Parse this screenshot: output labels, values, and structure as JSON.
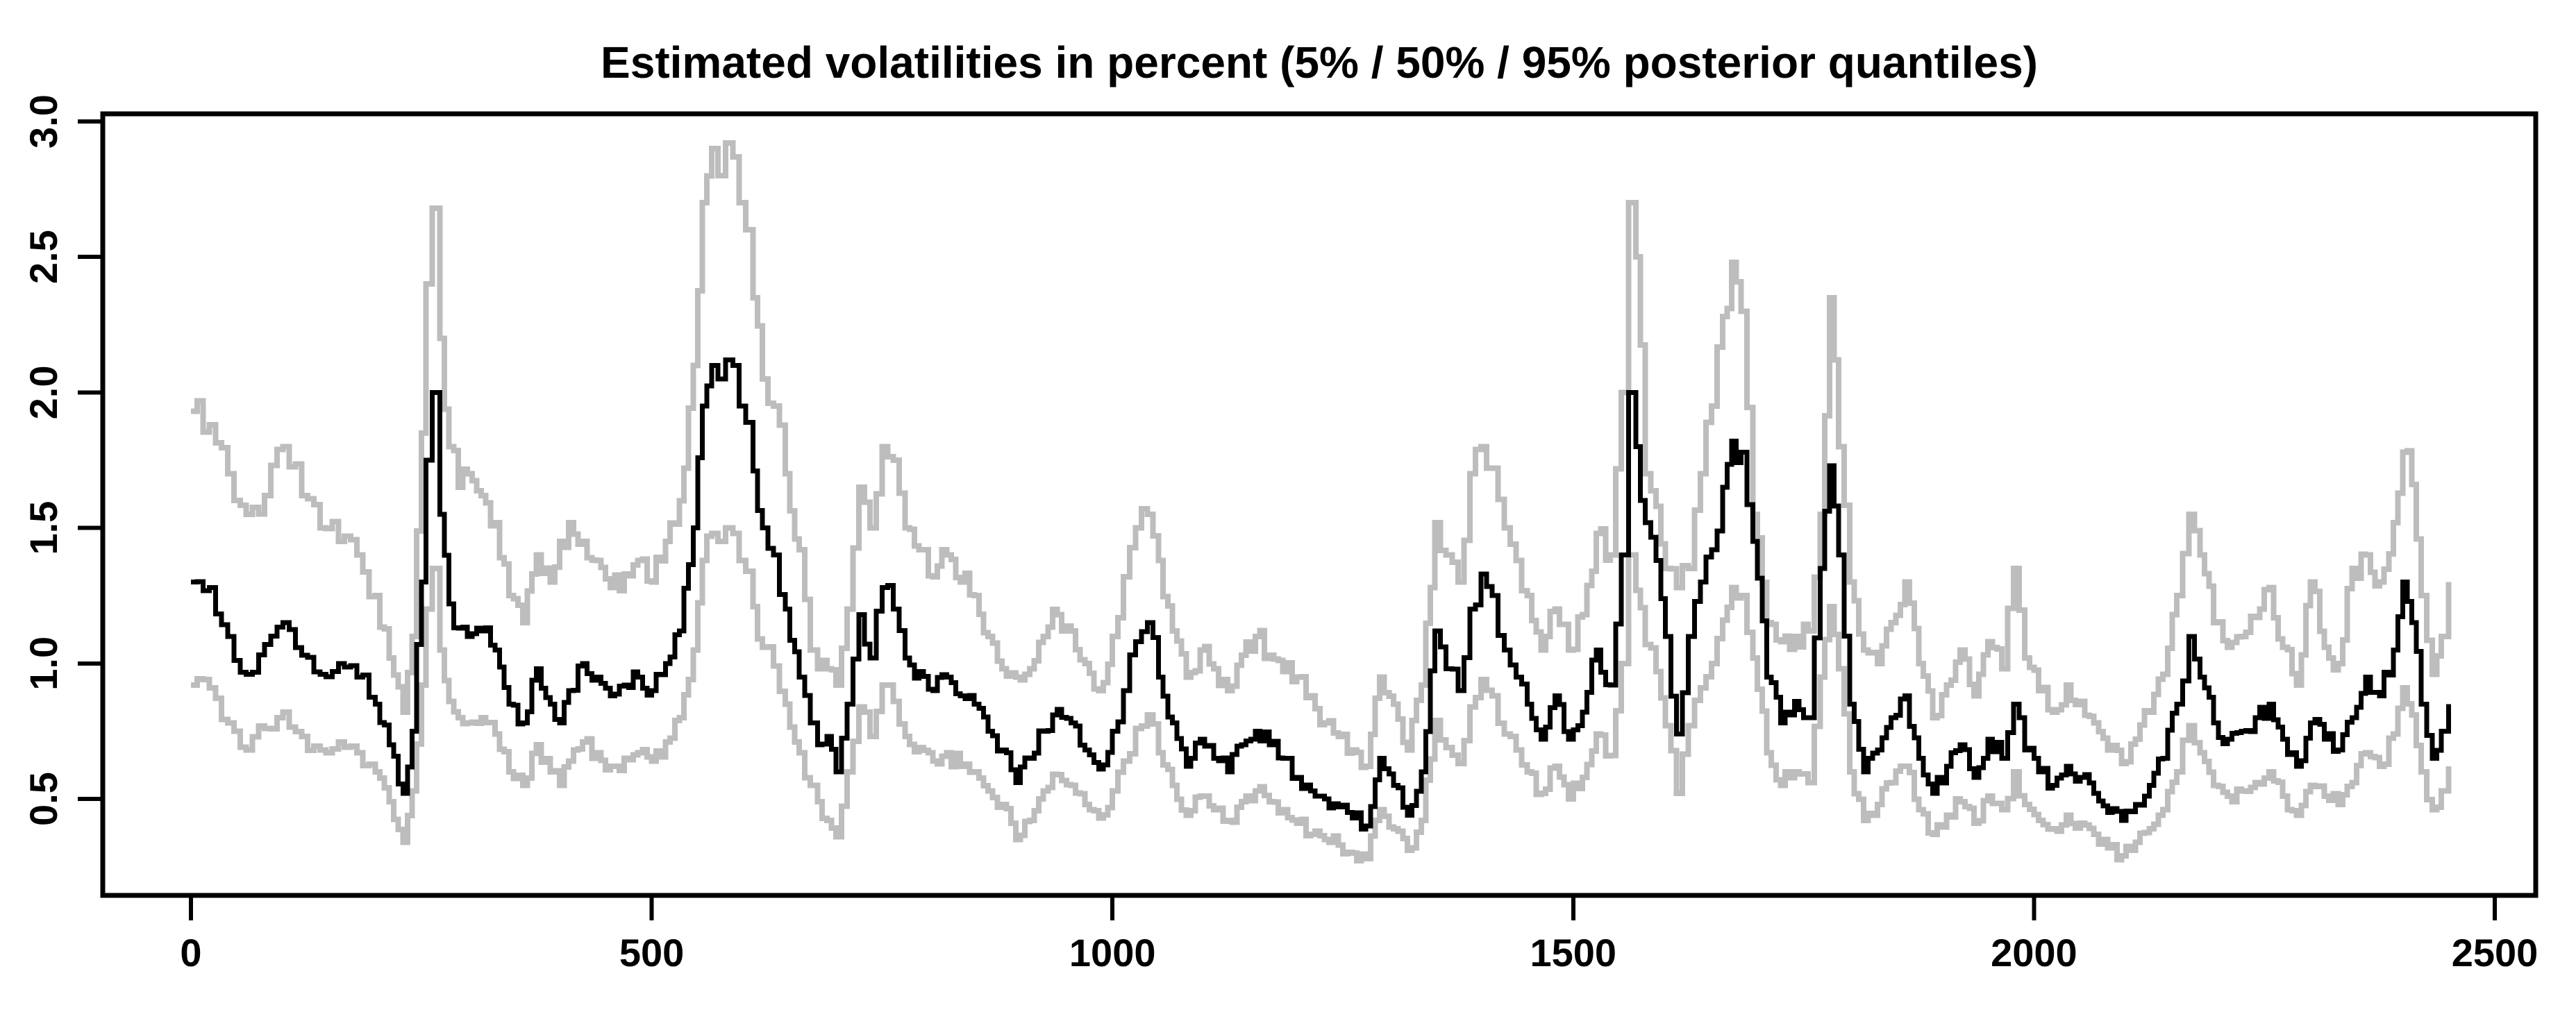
{
  "title": "Estimated volatilities in percent (5% / 50% / 95% posterior quantiles)",
  "colors": {
    "background": "#ffffff",
    "axis": "#000000",
    "median_line": "#000000",
    "quantile_line": "#bdbdbd"
  },
  "chart_data": {
    "type": "line",
    "title": "Estimated volatilities in percent (5% / 50% / 95% posterior quantiles)",
    "xlabel": "",
    "ylabel": "",
    "xlim": [
      -96,
      2544
    ],
    "ylim": [
      0.14,
      3.03
    ],
    "x_ticks": [
      0,
      500,
      1000,
      1500,
      2000,
      2500
    ],
    "x_tick_labels": [
      "0",
      "500",
      "1000",
      "1500",
      "2000",
      "2500"
    ],
    "y_ticks": [
      0.5,
      1.0,
      1.5,
      2.0,
      2.5,
      3.0
    ],
    "y_tick_labels": [
      "0.5",
      "1.0",
      "1.5",
      "2.0",
      "2.5",
      "3.0"
    ],
    "grid": false,
    "legend": "none",
    "x": [
      0,
      20,
      40,
      60,
      80,
      100,
      120,
      140,
      160,
      180,
      200,
      215,
      230,
      240,
      250,
      255,
      262,
      270,
      280,
      290,
      300,
      315,
      330,
      345,
      360,
      375,
      390,
      400,
      410,
      425,
      440,
      455,
      470,
      485,
      500,
      515,
      530,
      545,
      555,
      565,
      572,
      580,
      588,
      595,
      602,
      610,
      620,
      632,
      645,
      660,
      672,
      680,
      690,
      700,
      712,
      725,
      737,
      750,
      762,
      775,
      790,
      805,
      820,
      835,
      850,
      865,
      880,
      895,
      910,
      925,
      940,
      955,
      970,
      985,
      1000,
      1012,
      1025,
      1038,
      1050,
      1065,
      1080,
      1095,
      1110,
      1125,
      1140,
      1155,
      1170,
      1185,
      1200,
      1215,
      1230,
      1245,
      1260,
      1275,
      1290,
      1305,
      1320,
      1335,
      1350,
      1362,
      1375,
      1388,
      1400,
      1412,
      1425,
      1438,
      1450,
      1465,
      1480,
      1495,
      1510,
      1525,
      1540,
      1552,
      1560,
      1568,
      1578,
      1590,
      1600,
      1612,
      1625,
      1638,
      1650,
      1662,
      1672,
      1682,
      1695,
      1710,
      1725,
      1740,
      1755,
      1768,
      1778,
      1788,
      1800,
      1815,
      1830,
      1845,
      1860,
      1875,
      1890,
      1905,
      1920,
      1935,
      1950,
      1965,
      1978,
      1990,
      2005,
      2020,
      2035,
      2050,
      2065,
      2080,
      2095,
      2110,
      2125,
      2140,
      2155,
      2168,
      2180,
      2195,
      2210,
      2225,
      2240,
      2255,
      2270,
      2285,
      2300,
      2315,
      2330,
      2345,
      2360,
      2375,
      2390,
      2400,
      2410,
      2420,
      2432,
      2442,
      2450
    ],
    "series": [
      {
        "name": "95% posterior quantile",
        "color": "#bdbdbd",
        "values": [
          1.93,
          1.88,
          1.7,
          1.55,
          1.62,
          1.8,
          1.62,
          1.5,
          1.45,
          1.4,
          1.25,
          1.02,
          0.82,
          1.1,
          1.85,
          2.4,
          2.68,
          2.2,
          1.8,
          1.65,
          1.7,
          1.62,
          1.52,
          1.25,
          1.15,
          1.4,
          1.3,
          1.45,
          1.52,
          1.45,
          1.38,
          1.28,
          1.33,
          1.38,
          1.3,
          1.45,
          1.6,
          2.1,
          2.7,
          2.9,
          2.8,
          2.92,
          2.87,
          2.7,
          2.6,
          2.35,
          2.05,
          1.95,
          1.7,
          1.42,
          1.05,
          0.98,
          0.98,
          0.92,
          1.2,
          1.65,
          1.5,
          1.8,
          1.75,
          1.5,
          1.42,
          1.32,
          1.4,
          1.3,
          1.25,
          1.1,
          0.98,
          0.95,
          0.98,
          1.1,
          1.18,
          1.12,
          1.0,
          0.9,
          1.1,
          1.32,
          1.5,
          1.55,
          1.38,
          1.12,
          0.95,
          1.05,
          0.98,
          0.9,
          1.03,
          1.1,
          1.03,
          0.97,
          0.95,
          0.88,
          0.78,
          0.73,
          0.68,
          0.62,
          0.95,
          0.85,
          0.68,
          0.92,
          1.52,
          1.4,
          1.3,
          1.7,
          1.8,
          1.72,
          1.5,
          1.38,
          1.25,
          1.05,
          1.2,
          1.05,
          1.18,
          1.48,
          1.4,
          2.0,
          2.7,
          2.5,
          1.7,
          1.58,
          1.35,
          1.28,
          1.35,
          1.7,
          1.95,
          2.28,
          2.48,
          2.3,
          1.55,
          1.15,
          1.08,
          1.1,
          1.12,
          1.55,
          2.35,
          1.8,
          1.3,
          1.05,
          1.0,
          1.15,
          1.3,
          1.0,
          0.8,
          0.92,
          1.05,
          0.88,
          1.08,
          0.98,
          1.35,
          1.02,
          0.9,
          0.82,
          0.92,
          0.86,
          0.78,
          0.68,
          0.63,
          0.72,
          0.82,
          0.96,
          1.25,
          1.55,
          1.4,
          1.15,
          1.06,
          1.1,
          1.17,
          1.28,
          1.06,
          0.92,
          1.3,
          1.06,
          1.0,
          1.35,
          1.4,
          1.3,
          1.52,
          1.78,
          1.66,
          1.25,
          0.96,
          1.1,
          1.3
        ]
      },
      {
        "name": "50% posterior quantile (median)",
        "color": "#000000",
        "values": [
          1.3,
          1.28,
          1.1,
          0.96,
          1.07,
          1.15,
          1.03,
          0.96,
          1.0,
          0.95,
          0.85,
          0.7,
          0.52,
          0.75,
          1.3,
          1.75,
          2.0,
          1.55,
          1.22,
          1.13,
          1.1,
          1.12,
          1.05,
          0.85,
          0.78,
          0.98,
          0.85,
          0.78,
          0.9,
          1.0,
          0.95,
          0.88,
          0.92,
          0.95,
          0.9,
          1.0,
          1.12,
          1.5,
          1.95,
          2.1,
          2.05,
          2.12,
          2.1,
          1.95,
          1.89,
          1.71,
          1.5,
          1.4,
          1.2,
          0.95,
          0.78,
          0.7,
          0.73,
          0.6,
          0.85,
          1.18,
          1.02,
          1.28,
          1.2,
          1.02,
          0.97,
          0.9,
          0.95,
          0.88,
          0.85,
          0.75,
          0.68,
          0.56,
          0.65,
          0.75,
          0.83,
          0.78,
          0.68,
          0.61,
          0.75,
          0.9,
          1.08,
          1.15,
          0.95,
          0.78,
          0.62,
          0.72,
          0.65,
          0.6,
          0.7,
          0.75,
          0.7,
          0.65,
          0.58,
          0.53,
          0.5,
          0.47,
          0.43,
          0.4,
          0.65,
          0.55,
          0.44,
          0.6,
          1.12,
          0.98,
          0.9,
          1.2,
          1.33,
          1.25,
          1.05,
          0.95,
          0.85,
          0.72,
          0.88,
          0.72,
          0.82,
          1.05,
          0.92,
          1.4,
          2.0,
          1.8,
          1.52,
          1.38,
          1.1,
          0.74,
          1.1,
          1.3,
          1.42,
          1.65,
          1.82,
          1.78,
          1.45,
          0.95,
          0.78,
          0.86,
          0.8,
          1.35,
          1.73,
          1.4,
          0.85,
          0.6,
          0.68,
          0.8,
          0.88,
          0.65,
          0.52,
          0.62,
          0.7,
          0.58,
          0.72,
          0.65,
          0.85,
          0.68,
          0.6,
          0.55,
          0.62,
          0.58,
          0.52,
          0.45,
          0.42,
          0.48,
          0.55,
          0.65,
          0.85,
          1.1,
          0.95,
          0.78,
          0.72,
          0.75,
          0.8,
          0.85,
          0.72,
          0.62,
          0.78,
          0.72,
          0.68,
          0.8,
          0.95,
          0.88,
          1.05,
          1.3,
          1.15,
          0.85,
          0.65,
          0.75,
          0.85
        ]
      },
      {
        "name": "5% posterior quantile",
        "color": "#bdbdbd",
        "values": [
          0.92,
          0.91,
          0.78,
          0.68,
          0.76,
          0.82,
          0.73,
          0.68,
          0.71,
          0.67,
          0.6,
          0.49,
          0.34,
          0.53,
          0.92,
          1.2,
          1.35,
          1.05,
          0.86,
          0.8,
          0.78,
          0.8,
          0.74,
          0.6,
          0.55,
          0.7,
          0.6,
          0.55,
          0.64,
          0.71,
          0.67,
          0.62,
          0.65,
          0.67,
          0.64,
          0.71,
          0.8,
          1.05,
          1.38,
          1.48,
          1.45,
          1.5,
          1.48,
          1.38,
          1.34,
          1.21,
          1.06,
          0.99,
          0.85,
          0.67,
          0.55,
          0.49,
          0.42,
          0.36,
          0.6,
          0.84,
          0.73,
          0.92,
          0.86,
          0.73,
          0.69,
          0.64,
          0.67,
          0.62,
          0.6,
          0.53,
          0.48,
          0.35,
          0.42,
          0.53,
          0.59,
          0.55,
          0.48,
          0.43,
          0.53,
          0.64,
          0.76,
          0.81,
          0.67,
          0.55,
          0.44,
          0.51,
          0.46,
          0.42,
          0.49,
          0.53,
          0.49,
          0.46,
          0.41,
          0.37,
          0.35,
          0.33,
          0.3,
          0.28,
          0.46,
          0.39,
          0.31,
          0.42,
          0.79,
          0.69,
          0.63,
          0.84,
          0.94,
          0.88,
          0.74,
          0.68,
          0.6,
          0.52,
          0.62,
          0.5,
          0.58,
          0.74,
          0.66,
          1.0,
          1.4,
          1.27,
          1.07,
          0.97,
          0.77,
          0.52,
          0.77,
          0.91,
          1.0,
          1.16,
          1.28,
          1.25,
          1.02,
          0.67,
          0.55,
          0.6,
          0.56,
          0.95,
          1.21,
          0.98,
          0.6,
          0.42,
          0.48,
          0.56,
          0.62,
          0.46,
          0.37,
          0.44,
          0.49,
          0.41,
          0.51,
          0.46,
          0.6,
          0.48,
          0.42,
          0.39,
          0.44,
          0.41,
          0.37,
          0.32,
          0.29,
          0.34,
          0.39,
          0.46,
          0.6,
          0.77,
          0.67,
          0.55,
          0.51,
          0.53,
          0.56,
          0.6,
          0.51,
          0.44,
          0.55,
          0.51,
          0.48,
          0.56,
          0.67,
          0.62,
          0.74,
          0.91,
          0.81,
          0.6,
          0.46,
          0.53,
          0.62
        ]
      }
    ],
    "style": {
      "line_type": "step",
      "jitter": 0.05,
      "substep_units": 6,
      "seed": 20450,
      "median_stroke_width": 7,
      "quantile_stroke_width": 8,
      "axis_stroke_width": 7,
      "tick_length": 36,
      "tick_stroke_width": 6
    }
  }
}
